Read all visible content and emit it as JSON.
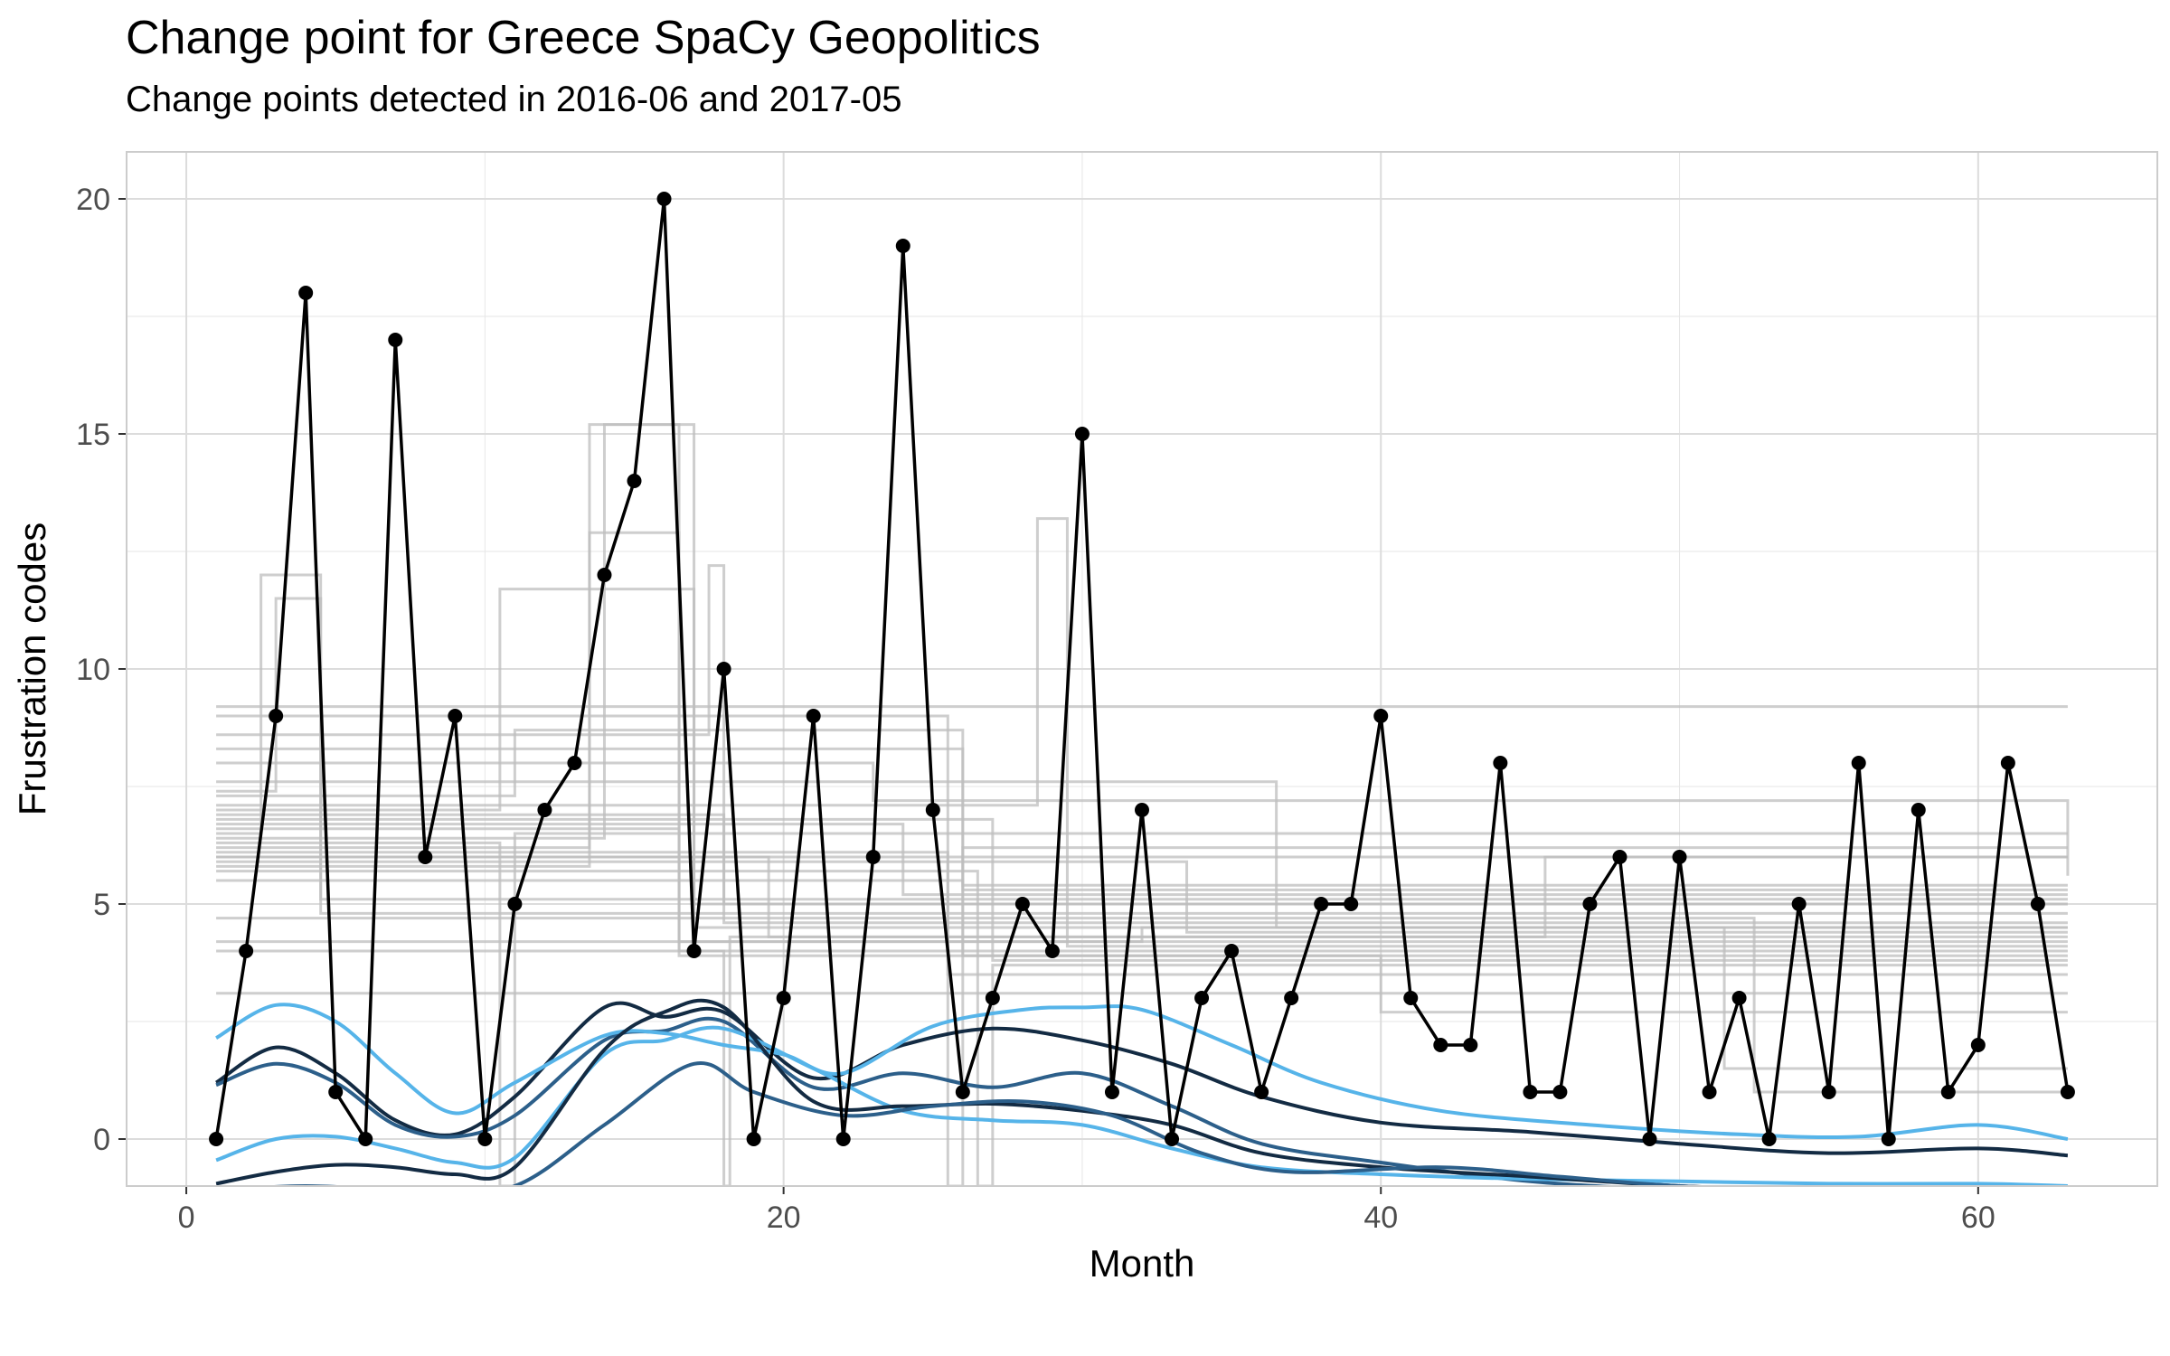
{
  "chart_data": {
    "type": "line",
    "title": "Change point for Greece SpaCy Geopolitics",
    "subtitle": "Change points detected in 2016-06 and 2017-05",
    "xlabel": "Month",
    "ylabel": "Frustration codes",
    "xlim": [
      -2,
      66
    ],
    "ylim": [
      -1,
      21
    ],
    "x_ticks": [
      0,
      20,
      40,
      60
    ],
    "y_ticks": [
      0,
      5,
      10,
      15,
      20
    ],
    "grid": true,
    "legend": "none",
    "colors": {
      "observed": "#000000",
      "changepoint_steps": "#bdbdbd",
      "smooth_light": "#56b4e9",
      "smooth_mid": "#2c5f8a",
      "smooth_dark": "#132b43",
      "grid": "#e6e6e6",
      "panel_border": "#cccccc"
    },
    "series": [
      {
        "x": [
          1,
          2,
          3,
          4,
          5,
          6,
          7,
          8,
          9,
          10,
          11,
          12,
          13,
          14,
          15,
          16,
          17,
          18,
          19,
          20,
          21,
          22,
          23,
          24,
          25,
          26,
          27,
          28,
          29,
          30,
          31,
          32,
          33,
          34,
          35,
          36,
          37,
          38,
          39,
          40,
          41,
          42,
          43,
          44,
          45,
          46,
          47,
          48,
          49,
          50,
          51,
          52,
          53,
          54,
          55,
          56,
          57,
          58,
          59,
          60,
          61,
          62,
          63
        ],
        "values": [
          0,
          4,
          9,
          18,
          1,
          0,
          17,
          6,
          9,
          0,
          5,
          7,
          8,
          12,
          14,
          20,
          4,
          10,
          0,
          3,
          9,
          0,
          6,
          19,
          7,
          1,
          3,
          5,
          4,
          15,
          1,
          7,
          0,
          3,
          4,
          1,
          3,
          5,
          5,
          9,
          3,
          2,
          2,
          8,
          1,
          1,
          5,
          6,
          0,
          6,
          1,
          3,
          0,
          5,
          1,
          8,
          0,
          7,
          1,
          2,
          8,
          5,
          1
        ]
      }
    ],
    "changepoint_steps": [
      {
        "steps": [
          [
            1,
            9.2
          ],
          [
            63,
            9.2
          ]
        ]
      },
      {
        "steps": [
          [
            1,
            8.3
          ],
          [
            26,
            8.3
          ],
          [
            26,
            5.4
          ],
          [
            63,
            5.4
          ]
        ]
      },
      {
        "steps": [
          [
            1,
            7.3
          ],
          [
            11,
            7.3
          ],
          [
            11,
            8.7
          ],
          [
            26,
            8.7
          ],
          [
            26,
            5.3
          ],
          [
            63,
            5.3
          ]
        ]
      },
      {
        "steps": [
          [
            1,
            6.6
          ],
          [
            16.5,
            6.6
          ],
          [
            16.5,
            3.9
          ],
          [
            63,
            3.9
          ]
        ]
      },
      {
        "steps": [
          [
            1,
            5.8
          ],
          [
            13.5,
            5.8
          ],
          [
            13.5,
            12.9
          ],
          [
            16.5,
            12.9
          ],
          [
            16.5,
            4.2
          ],
          [
            63,
            4.2
          ]
        ]
      },
      {
        "steps": [
          [
            1,
            6.2
          ],
          [
            13.5,
            6.2
          ],
          [
            13.5,
            15.2
          ],
          [
            17,
            15.2
          ],
          [
            17,
            4.5
          ],
          [
            63,
            4.5
          ]
        ]
      },
      {
        "steps": [
          [
            1,
            6.5
          ],
          [
            2.5,
            6.5
          ],
          [
            2.5,
            12.0
          ],
          [
            4.5,
            12.0
          ],
          [
            4.5,
            4.8
          ],
          [
            63,
            4.8
          ]
        ]
      },
      {
        "steps": [
          [
            1,
            7.0
          ],
          [
            10.5,
            7.0
          ],
          [
            10.5,
            11.7
          ],
          [
            17,
            11.7
          ],
          [
            17,
            5.0
          ],
          [
            63,
            5.0
          ]
        ]
      },
      {
        "steps": [
          [
            1,
            6.8
          ],
          [
            27,
            6.8
          ],
          [
            27,
            3.8
          ],
          [
            63,
            3.8
          ]
        ]
      },
      {
        "steps": [
          [
            1,
            7.1
          ],
          [
            28.5,
            7.1
          ],
          [
            28.5,
            13.2
          ],
          [
            29.5,
            13.2
          ],
          [
            29.5,
            4.1
          ],
          [
            63,
            4.1
          ]
        ]
      },
      {
        "steps": [
          [
            1,
            8.6
          ],
          [
            17.5,
            8.6
          ],
          [
            17.5,
            12.2
          ],
          [
            18,
            12.2
          ],
          [
            18,
            4.6
          ],
          [
            63,
            4.6
          ]
        ]
      },
      {
        "steps": [
          [
            1,
            3.1
          ],
          [
            63,
            3.1
          ]
        ]
      },
      {
        "steps": [
          [
            1,
            6.0
          ],
          [
            19.5,
            6.0
          ],
          [
            19.5,
            4.3
          ],
          [
            45.5,
            4.3
          ],
          [
            45.5,
            6.0
          ],
          [
            63,
            6.0
          ]
        ]
      },
      {
        "steps": [
          [
            1,
            5.9
          ],
          [
            33.5,
            5.9
          ],
          [
            33.5,
            4.4
          ],
          [
            63,
            4.4
          ]
        ]
      },
      {
        "steps": [
          [
            1,
            8.0
          ],
          [
            23,
            8.0
          ],
          [
            23,
            7.2
          ],
          [
            63,
            7.2
          ],
          [
            63,
            5.6
          ]
        ]
      },
      {
        "steps": [
          [
            1,
            7.6
          ],
          [
            36.5,
            7.6
          ],
          [
            36.5,
            4.5
          ],
          [
            63,
            4.5
          ]
        ]
      },
      {
        "steps": [
          [
            1,
            9.0
          ],
          [
            25.5,
            9.0
          ],
          [
            25.5,
            -1
          ],
          [
            26,
            -1
          ],
          [
            26,
            6.2
          ],
          [
            63,
            6.2
          ]
        ]
      },
      {
        "steps": [
          [
            1,
            6.3
          ],
          [
            10.5,
            6.3
          ],
          [
            10.5,
            -1
          ],
          [
            11,
            -1
          ],
          [
            11,
            6.5
          ],
          [
            63,
            6.5
          ]
        ]
      },
      {
        "steps": [
          [
            1,
            6.1
          ],
          [
            25.5,
            6.1
          ],
          [
            25.5,
            3.5
          ],
          [
            63,
            3.5
          ]
        ]
      },
      {
        "steps": [
          [
            1,
            6.4
          ],
          [
            14,
            6.4
          ],
          [
            14,
            15.2
          ],
          [
            16.5,
            15.2
          ],
          [
            16.5,
            4.0
          ],
          [
            63,
            4.0
          ]
        ]
      },
      {
        "steps": [
          [
            1,
            5.7
          ],
          [
            26.5,
            5.7
          ],
          [
            26.5,
            -1
          ],
          [
            27,
            -1
          ],
          [
            27,
            3.7
          ],
          [
            63,
            3.7
          ]
        ]
      },
      {
        "steps": [
          [
            1,
            6.9
          ],
          [
            18,
            6.9
          ],
          [
            18,
            5.0
          ],
          [
            63,
            5.0
          ]
        ]
      },
      {
        "steps": [
          [
            1,
            4.0
          ],
          [
            18,
            4.0
          ],
          [
            18,
            -1
          ],
          [
            18.2,
            -1
          ],
          [
            18.2,
            4.3
          ],
          [
            63,
            4.3
          ]
        ]
      },
      {
        "steps": [
          [
            1,
            6.7
          ],
          [
            24,
            6.7
          ],
          [
            24,
            5.2
          ],
          [
            63,
            5.2
          ]
        ]
      },
      {
        "steps": [
          [
            1,
            7.4
          ],
          [
            3,
            7.4
          ],
          [
            3,
            11.5
          ],
          [
            4.5,
            11.5
          ],
          [
            4.5,
            5.1
          ],
          [
            63,
            5.1
          ]
        ]
      },
      {
        "steps": [
          [
            1,
            4.2
          ],
          [
            32,
            4.2
          ],
          [
            32,
            4.5
          ],
          [
            51.5,
            4.5
          ],
          [
            51.5,
            1.5
          ],
          [
            63,
            1.5
          ]
        ]
      },
      {
        "steps": [
          [
            1,
            5.5
          ],
          [
            26,
            5.5
          ],
          [
            26,
            3.9
          ],
          [
            40,
            3.9
          ],
          [
            40,
            2.7
          ],
          [
            63,
            2.7
          ]
        ]
      },
      {
        "steps": [
          [
            1,
            4.7
          ],
          [
            52.5,
            4.7
          ],
          [
            52.5,
            1.0
          ],
          [
            63,
            1.0
          ]
        ]
      },
      {
        "steps": [
          [
            1,
            6.0
          ],
          [
            63,
            6.0
          ]
        ]
      }
    ],
    "smooth_curves": [
      {
        "color": "smooth_dark",
        "points": [
          [
            1,
            1.2
          ],
          [
            3,
            1.95
          ],
          [
            5,
            1.4
          ],
          [
            7,
            0.4
          ],
          [
            9,
            0.1
          ],
          [
            11,
            0.9
          ],
          [
            14,
            2.8
          ],
          [
            16,
            2.6
          ],
          [
            18,
            2.7
          ],
          [
            21,
            1.3
          ],
          [
            24,
            2.0
          ],
          [
            27,
            2.35
          ],
          [
            30,
            2.1
          ],
          [
            33,
            1.6
          ],
          [
            36,
            0.9
          ],
          [
            40,
            0.35
          ],
          [
            45,
            0.15
          ],
          [
            50,
            -0.1
          ],
          [
            55,
            -0.3
          ],
          [
            60,
            -0.2
          ],
          [
            63,
            -0.35
          ]
        ]
      },
      {
        "color": "smooth_mid",
        "points": [
          [
            1,
            1.15
          ],
          [
            3,
            1.6
          ],
          [
            5,
            1.2
          ],
          [
            7,
            0.3
          ],
          [
            9,
            0.05
          ],
          [
            11,
            0.5
          ],
          [
            14,
            2.1
          ],
          [
            16,
            2.3
          ],
          [
            18,
            2.5
          ],
          [
            21,
            1.1
          ],
          [
            24,
            1.4
          ],
          [
            27,
            1.1
          ],
          [
            30,
            1.4
          ],
          [
            33,
            0.7
          ],
          [
            36,
            -0.1
          ],
          [
            40,
            -0.5
          ],
          [
            45,
            -0.9
          ],
          [
            50,
            -1.1
          ],
          [
            55,
            -1.3
          ],
          [
            60,
            -1.4
          ],
          [
            63,
            -1.5
          ]
        ]
      },
      {
        "color": "smooth_light",
        "points": [
          [
            1,
            2.15
          ],
          [
            3,
            2.85
          ],
          [
            5,
            2.5
          ],
          [
            7,
            1.4
          ],
          [
            9,
            0.55
          ],
          [
            11,
            1.2
          ],
          [
            14,
            2.2
          ],
          [
            16,
            2.25
          ],
          [
            18,
            2.0
          ],
          [
            20,
            1.8
          ],
          [
            22,
            1.4
          ],
          [
            25,
            2.4
          ],
          [
            28,
            2.75
          ],
          [
            30,
            2.8
          ],
          [
            32,
            2.75
          ],
          [
            35,
            2.0
          ],
          [
            38,
            1.2
          ],
          [
            42,
            0.6
          ],
          [
            47,
            0.3
          ],
          [
            52,
            0.1
          ],
          [
            56,
            0.05
          ],
          [
            60,
            0.3
          ],
          [
            63,
            0.0
          ]
        ]
      },
      {
        "color": "smooth_light",
        "points": [
          [
            1,
            -0.45
          ],
          [
            3,
            0.0
          ],
          [
            5,
            0.05
          ],
          [
            7,
            -0.2
          ],
          [
            9,
            -0.5
          ],
          [
            11,
            -0.4
          ],
          [
            14,
            1.8
          ],
          [
            16,
            2.1
          ],
          [
            18,
            2.35
          ],
          [
            21,
            1.5
          ],
          [
            24,
            0.6
          ],
          [
            27,
            0.4
          ],
          [
            30,
            0.3
          ],
          [
            33,
            -0.2
          ],
          [
            36,
            -0.6
          ],
          [
            40,
            -0.75
          ],
          [
            45,
            -0.85
          ],
          [
            50,
            -0.9
          ],
          [
            55,
            -0.95
          ],
          [
            60,
            -0.95
          ],
          [
            63,
            -1.0
          ]
        ]
      },
      {
        "color": "smooth_dark",
        "points": [
          [
            1,
            -0.95
          ],
          [
            3,
            -0.7
          ],
          [
            5,
            -0.55
          ],
          [
            7,
            -0.6
          ],
          [
            9,
            -0.75
          ],
          [
            11,
            -0.6
          ],
          [
            14,
            1.9
          ],
          [
            16,
            2.7
          ],
          [
            18,
            2.8
          ],
          [
            21,
            0.8
          ],
          [
            24,
            0.7
          ],
          [
            27,
            0.75
          ],
          [
            30,
            0.6
          ],
          [
            33,
            0.3
          ],
          [
            36,
            -0.3
          ],
          [
            40,
            -0.6
          ],
          [
            45,
            -0.8
          ],
          [
            50,
            -1.0
          ],
          [
            55,
            -1.1
          ],
          [
            60,
            -1.2
          ],
          [
            63,
            -1.3
          ]
        ]
      },
      {
        "color": "smooth_mid",
        "points": [
          [
            1,
            -1.1
          ],
          [
            4,
            -1.0
          ],
          [
            8,
            -1.1
          ],
          [
            11,
            -1.0
          ],
          [
            14,
            0.3
          ],
          [
            17,
            1.6
          ],
          [
            19,
            1.0
          ],
          [
            22,
            0.5
          ],
          [
            25,
            0.7
          ],
          [
            28,
            0.8
          ],
          [
            31,
            0.5
          ],
          [
            34,
            -0.3
          ],
          [
            37,
            -0.7
          ],
          [
            42,
            -0.6
          ],
          [
            46,
            -0.8
          ],
          [
            50,
            -1.0
          ],
          [
            55,
            -1.1
          ],
          [
            60,
            -1.15
          ],
          [
            63,
            -1.2
          ]
        ]
      }
    ]
  }
}
